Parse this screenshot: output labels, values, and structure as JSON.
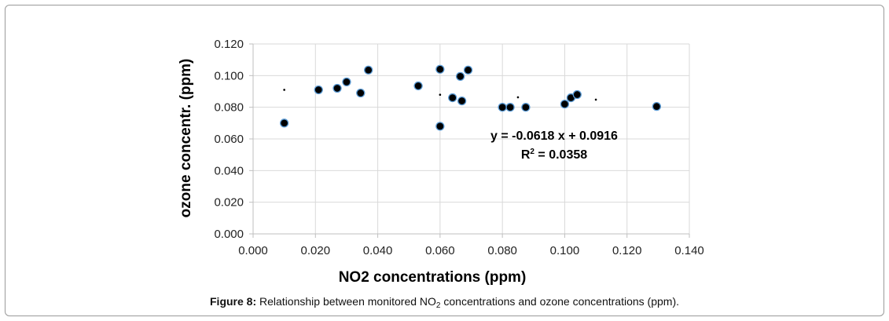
{
  "chart_data": {
    "type": "scatter",
    "xlabel": "NO2 concentrations (ppm)",
    "ylabel": "ozone concentr. (ppm)",
    "xlim": [
      0,
      0.14
    ],
    "ylim": [
      0,
      0.12
    ],
    "x_ticks": [
      "0.000",
      "0.020",
      "0.040",
      "0.060",
      "0.080",
      "0.100",
      "0.120",
      "0.140"
    ],
    "y_ticks": [
      "0.000",
      "0.020",
      "0.040",
      "0.060",
      "0.080",
      "0.100",
      "0.120"
    ],
    "grid": true,
    "series": [
      {
        "points": [
          [
            0.01,
            0.07
          ],
          [
            0.021,
            0.091
          ],
          [
            0.027,
            0.092
          ],
          [
            0.03,
            0.096
          ],
          [
            0.0345,
            0.089
          ],
          [
            0.037,
            0.1035
          ],
          [
            0.053,
            0.0935
          ],
          [
            0.06,
            0.104
          ],
          [
            0.06,
            0.068
          ],
          [
            0.064,
            0.086
          ],
          [
            0.0665,
            0.0995
          ],
          [
            0.067,
            0.084
          ],
          [
            0.069,
            0.1035
          ],
          [
            0.08,
            0.08
          ],
          [
            0.0825,
            0.08
          ],
          [
            0.0875,
            0.08
          ],
          [
            0.1,
            0.082
          ],
          [
            0.102,
            0.086
          ],
          [
            0.104,
            0.088
          ],
          [
            0.1295,
            0.0805
          ]
        ]
      },
      {
        "type": "trendline-markers",
        "points": [
          [
            0.01,
            0.091
          ],
          [
            0.06,
            0.0879
          ],
          [
            0.085,
            0.0863
          ],
          [
            0.11,
            0.0848
          ]
        ]
      }
    ],
    "annotations": {
      "equation": "y = -0.0618 x + 0.0916",
      "r2_label": "R",
      "r2_sup": "2",
      "r2_value": " = 0.0358"
    }
  },
  "caption": {
    "label": "Figure 8:",
    "text_before_sub": " Relationship between monitored NO",
    "sub": "2",
    "text_after_sub": " concentrations and ozone concentrations (ppm)."
  }
}
